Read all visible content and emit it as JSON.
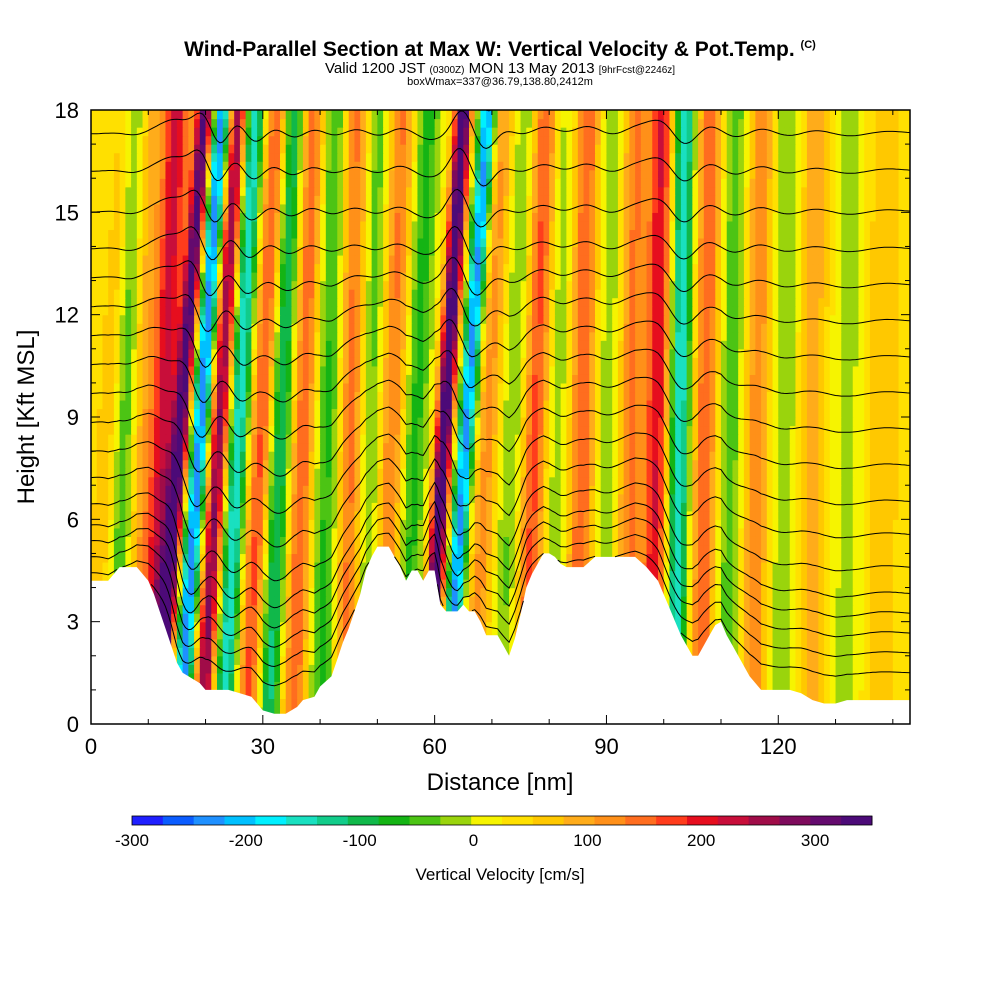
{
  "chart_data": {
    "type": "heatmap",
    "title": "Wind-Parallel Section at Max W: Vertical Velocity & Pot.Temp.",
    "title_mark": "(C)",
    "subtitle": {
      "main_a": "Valid 1200 JST",
      "small_a": "(0300Z)",
      "main_b": "MON 13 May 2013",
      "small_b": "[9hrFcst@2246z]"
    },
    "subtitle2": "boxWmax=337@36.79,138.80,2412m",
    "xlabel": "Distance [nm]",
    "ylabel": "Height [Kft MSL]",
    "xlim": [
      0,
      143
    ],
    "ylim": [
      0,
      18
    ],
    "x_ticks": [
      0,
      30,
      60,
      90,
      120
    ],
    "y_ticks": [
      0,
      3,
      6,
      9,
      12,
      15,
      18
    ],
    "colorbar": {
      "label": "Vertical Velocity [cm/s]",
      "min": -300,
      "max": 350,
      "step": 25,
      "tick_values": [
        -300,
        -200,
        -100,
        0,
        100,
        200,
        300
      ],
      "colors": [
        "#1f1fff",
        "#0a5cff",
        "#1e90ff",
        "#00c0ff",
        "#00f0ff",
        "#19e0c0",
        "#11cc8a",
        "#10b84a",
        "#14b414",
        "#4cc414",
        "#9ad40c",
        "#f6f400",
        "#ffe000",
        "#ffc800",
        "#ffac1a",
        "#ff9019",
        "#ff6d1f",
        "#ff3c1c",
        "#e60e1e",
        "#c80e3a",
        "#a00c48",
        "#7e0a5c",
        "#640a6e",
        "#4c0a78"
      ]
    },
    "terrain_kft": [
      [
        0,
        4.2
      ],
      [
        3,
        4.2
      ],
      [
        5,
        4.6
      ],
      [
        8,
        4.6
      ],
      [
        10,
        4.2
      ],
      [
        11,
        3.8
      ],
      [
        12,
        3.3
      ],
      [
        13,
        2.8
      ],
      [
        14,
        2.3
      ],
      [
        15,
        1.8
      ],
      [
        16,
        1.5
      ],
      [
        17,
        1.4
      ],
      [
        18,
        1.3
      ],
      [
        19,
        1.2
      ],
      [
        20,
        1.0
      ],
      [
        22,
        1.0
      ],
      [
        24,
        1.0
      ],
      [
        26,
        0.9
      ],
      [
        28,
        0.8
      ],
      [
        29,
        0.6
      ],
      [
        30,
        0.4
      ],
      [
        32,
        0.3
      ],
      [
        34,
        0.3
      ],
      [
        36,
        0.5
      ],
      [
        37,
        0.7
      ],
      [
        39,
        0.8
      ],
      [
        40,
        1.1
      ],
      [
        42,
        1.4
      ],
      [
        43,
        1.9
      ],
      [
        44,
        2.4
      ],
      [
        45,
        2.8
      ],
      [
        46,
        3.3
      ],
      [
        47,
        3.8
      ],
      [
        48,
        4.5
      ],
      [
        49,
        4.9
      ],
      [
        50,
        5.2
      ],
      [
        52,
        5.2
      ],
      [
        53,
        4.9
      ],
      [
        54,
        4.6
      ],
      [
        55,
        4.2
      ],
      [
        56,
        4.5
      ],
      [
        57,
        4.5
      ],
      [
        58,
        4.2
      ],
      [
        59,
        4.5
      ],
      [
        60,
        4.5
      ],
      [
        61,
        3.5
      ],
      [
        62,
        3.3
      ],
      [
        63,
        3.3
      ],
      [
        64,
        3.3
      ],
      [
        65,
        3.5
      ],
      [
        66,
        3.3
      ],
      [
        67,
        3.3
      ],
      [
        68,
        3.0
      ],
      [
        69,
        2.6
      ],
      [
        70,
        2.6
      ],
      [
        71,
        2.6
      ],
      [
        72,
        2.3
      ],
      [
        73,
        2.0
      ],
      [
        74,
        2.5
      ],
      [
        75,
        3.2
      ],
      [
        76,
        4.0
      ],
      [
        77,
        4.4
      ],
      [
        78,
        4.7
      ],
      [
        79,
        5.0
      ],
      [
        80,
        5.0
      ],
      [
        81,
        4.9
      ],
      [
        82,
        4.7
      ],
      [
        83,
        4.6
      ],
      [
        85,
        4.6
      ],
      [
        86,
        4.6
      ],
      [
        88,
        4.9
      ],
      [
        90,
        4.9
      ],
      [
        95,
        4.9
      ],
      [
        97,
        4.6
      ],
      [
        99,
        4.2
      ],
      [
        100,
        3.8
      ],
      [
        101,
        3.4
      ],
      [
        102,
        3.0
      ],
      [
        103,
        2.6
      ],
      [
        104,
        2.3
      ],
      [
        105,
        2.0
      ],
      [
        106,
        2.0
      ],
      [
        107,
        2.3
      ],
      [
        108,
        2.6
      ],
      [
        109,
        2.9
      ],
      [
        110,
        3.0
      ],
      [
        111,
        2.6
      ],
      [
        112,
        2.3
      ],
      [
        113,
        2.0
      ],
      [
        114,
        1.7
      ],
      [
        115,
        1.4
      ],
      [
        116,
        1.2
      ],
      [
        117,
        1.0
      ],
      [
        118,
        1.0
      ],
      [
        119,
        1.0
      ],
      [
        120,
        1.0
      ],
      [
        122,
        1.0
      ],
      [
        124,
        0.9
      ],
      [
        126,
        0.7
      ],
      [
        128,
        0.6
      ],
      [
        130,
        0.6
      ],
      [
        132,
        0.7
      ],
      [
        135,
        0.7
      ],
      [
        138,
        0.7
      ],
      [
        143,
        0.7
      ]
    ],
    "updraft_bands": [
      {
        "x": 2,
        "tilt": 0.35,
        "peak": 40,
        "width": 2.0
      },
      {
        "x": 5.5,
        "tilt": 0.2,
        "peak": -80,
        "width": 2.0
      },
      {
        "x": 8.5,
        "tilt": 0.15,
        "peak": 60,
        "width": 2.2
      },
      {
        "x": 12,
        "tilt": 0.25,
        "peak": 180,
        "width": 2.2
      },
      {
        "x": 14.5,
        "tilt": 0.45,
        "peak": 280,
        "width": 1.5
      },
      {
        "x": 18,
        "tilt": 0.4,
        "peak": -250,
        "width": 1.6
      },
      {
        "x": 21.5,
        "tilt": 0.35,
        "peak": 230,
        "width": 1.6
      },
      {
        "x": 25,
        "tilt": 0.3,
        "peak": -180,
        "width": 1.8
      },
      {
        "x": 29,
        "tilt": 0.3,
        "peak": 130,
        "width": 2.0
      },
      {
        "x": 32.5,
        "tilt": 0.25,
        "peak": -140,
        "width": 2.0
      },
      {
        "x": 36.5,
        "tilt": 0.2,
        "peak": 120,
        "width": 2.2
      },
      {
        "x": 41,
        "tilt": 0.15,
        "peak": -90,
        "width": 2.5
      },
      {
        "x": 45,
        "tilt": 0.1,
        "peak": 110,
        "width": 2.2
      },
      {
        "x": 48.5,
        "tilt": 0.15,
        "peak": -70,
        "width": 2.0
      },
      {
        "x": 52,
        "tilt": 0.2,
        "peak": 100,
        "width": 2.2
      },
      {
        "x": 56,
        "tilt": 0.25,
        "peak": -90,
        "width": 2.2
      },
      {
        "x": 60.8,
        "tilt": 0.35,
        "peak": 320,
        "width": 1.4
      },
      {
        "x": 64.5,
        "tilt": 0.4,
        "peak": -240,
        "width": 1.5
      },
      {
        "x": 68.5,
        "tilt": 0.3,
        "peak": 80,
        "width": 2.0
      },
      {
        "x": 73,
        "tilt": 0.25,
        "peak": -60,
        "width": 2.2
      },
      {
        "x": 77,
        "tilt": 0.2,
        "peak": 130,
        "width": 2.2
      },
      {
        "x": 81,
        "tilt": 0.15,
        "peak": -50,
        "width": 2.2
      },
      {
        "x": 85.5,
        "tilt": 0.1,
        "peak": 120,
        "width": 2.2
      },
      {
        "x": 90,
        "tilt": 0.1,
        "peak": -50,
        "width": 2.2
      },
      {
        "x": 94,
        "tilt": 0.1,
        "peak": 100,
        "width": 2.2
      },
      {
        "x": 98.5,
        "tilt": 0.1,
        "peak": 170,
        "width": 2.0
      },
      {
        "x": 102.5,
        "tilt": 0.1,
        "peak": -180,
        "width": 1.8
      },
      {
        "x": 107,
        "tilt": 0.1,
        "peak": 120,
        "width": 2.0
      },
      {
        "x": 111.5,
        "tilt": 0.1,
        "peak": -70,
        "width": 2.2
      },
      {
        "x": 116,
        "tilt": 0.1,
        "peak": 90,
        "width": 2.2
      },
      {
        "x": 121,
        "tilt": 0.05,
        "peak": -50,
        "width": 2.5
      },
      {
        "x": 126,
        "tilt": 0.05,
        "peak": 60,
        "width": 2.5
      },
      {
        "x": 132,
        "tilt": 0.05,
        "peak": -40,
        "width": 3.0
      },
      {
        "x": 138,
        "tilt": 0.05,
        "peak": 40,
        "width": 3.0
      }
    ],
    "theta_contour_levels_kft": [
      1.0,
      1.6,
      2.2,
      2.8,
      3.4,
      4.2,
      5.2,
      6.2,
      7.3,
      8.4,
      9.5,
      10.6,
      11.7,
      12.8,
      13.9,
      15.0,
      16.2,
      17.3,
      18.4
    ]
  }
}
